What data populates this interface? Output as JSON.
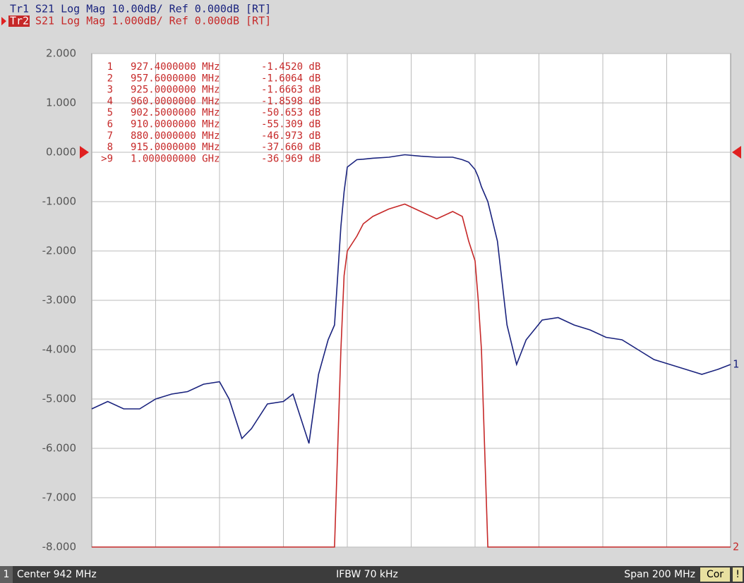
{
  "chart_data": {
    "type": "line",
    "header": [
      {
        "name": "Tr1",
        "desc": "S21 Log Mag 10.00dB/ Ref 0.000dB [RT]"
      },
      {
        "name": "Tr2",
        "desc": "S21 Log Mag 1.000dB/ Ref 0.000dB [RT]"
      }
    ],
    "x": [
      842,
      847,
      852,
      857,
      862,
      867,
      872,
      877,
      882,
      885,
      889,
      892,
      897,
      902,
      905,
      907,
      910,
      913,
      916,
      918,
      919,
      920,
      921,
      922,
      925,
      927,
      930,
      935,
      940,
      945,
      950,
      955,
      958,
      960,
      962,
      963,
      964,
      965,
      966,
      969,
      972,
      975,
      978,
      983,
      988,
      993,
      998,
      1003,
      1008,
      1013,
      1018,
      1023,
      1028,
      1033,
      1038,
      1042
    ],
    "series": [
      {
        "name": "Tr1",
        "end_label": "1",
        "color": "#1a237e",
        "axis": "y2",
        "values": [
          -52,
          -50.5,
          -52,
          -52,
          -50,
          -49,
          -48.5,
          -47,
          -46.5,
          -50,
          -58,
          -56,
          -51,
          -50.5,
          -49,
          -53,
          -59,
          -45,
          -38,
          -35,
          -25,
          -15,
          -8,
          -3,
          -1.5,
          -1.4,
          -1.2,
          -1,
          -0.5,
          -0.8,
          -1,
          -1,
          -1.5,
          -2,
          -3.5,
          -5,
          -7,
          -8.5,
          -10,
          -18,
          -35,
          -43,
          -38,
          -34,
          -33.5,
          -35,
          -36,
          -37.5,
          -38,
          -40,
          -42,
          -43,
          -44,
          -45,
          -44,
          -43
        ]
      },
      {
        "name": "Tr2",
        "end_label": "2",
        "color": "#c62828",
        "values": [
          -8,
          -8,
          -8,
          -8,
          -8,
          -8,
          -8,
          -8,
          -8,
          -8,
          -8,
          -8,
          -8,
          -8,
          -8,
          -8,
          -8,
          -8,
          -8,
          -8,
          -6,
          -4,
          -2.5,
          -2,
          -1.7,
          -1.45,
          -1.3,
          -1.15,
          -1.05,
          -1.2,
          -1.35,
          -1.2,
          -1.3,
          -1.8,
          -2.2,
          -3,
          -4,
          -6,
          -8,
          -8,
          -8,
          -8,
          -8,
          -8,
          -8,
          -8,
          -8,
          -8,
          -8,
          -8,
          -8,
          -8,
          -8,
          -8,
          -8,
          -8
        ]
      }
    ],
    "xlim": [
      842,
      1042
    ],
    "ylim": [
      -8,
      2
    ],
    "y2lim": [
      -80,
      20
    ],
    "yticks": [
      {
        "value": 2,
        "label": "2.000"
      },
      {
        "value": 1,
        "label": "1.000"
      },
      {
        "value": 0,
        "label": "0.000"
      },
      {
        "value": -1,
        "label": "-1.000"
      },
      {
        "value": -2,
        "label": "-2.000"
      },
      {
        "value": -3,
        "label": "-3.000"
      },
      {
        "value": -4,
        "label": "-4.000"
      },
      {
        "value": -5,
        "label": "-5.000"
      },
      {
        "value": -6,
        "label": "-6.000"
      },
      {
        "value": -7,
        "label": "-7.000"
      },
      {
        "value": -8,
        "label": "-8.000"
      }
    ],
    "ref_level": 0,
    "grid": true,
    "markers": [
      {
        "id": "1",
        "freq": "927.4000000 MHz",
        "value": "-1.4520 dB"
      },
      {
        "id": "2",
        "freq": "957.6000000 MHz",
        "value": "-1.6064 dB"
      },
      {
        "id": "3",
        "freq": "925.0000000 MHz",
        "value": "-1.6663 dB"
      },
      {
        "id": "4",
        "freq": "960.0000000 MHz",
        "value": "-1.8598 dB"
      },
      {
        "id": "5",
        "freq": "902.5000000 MHz",
        "value": "-50.653 dB"
      },
      {
        "id": "6",
        "freq": "910.0000000 MHz",
        "value": "-55.309 dB"
      },
      {
        "id": "7",
        "freq": "880.0000000 MHz",
        "value": "-46.973 dB"
      },
      {
        "id": "8",
        "freq": "915.0000000 MHz",
        "value": "-37.660 dB"
      },
      {
        "id": ">9",
        "freq": "1.000000000 GHz",
        "value": "-36.969 dB"
      }
    ]
  },
  "status_bar": {
    "channel": "1",
    "center": "Center 942 MHz",
    "ifbw": "IFBW 70 kHz",
    "span": "Span 200 MHz",
    "cor": "Cor",
    "alert": "!"
  }
}
